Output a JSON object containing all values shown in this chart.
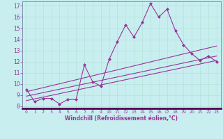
{
  "xlabel": "Windchill (Refroidissement éolien,°C)",
  "bg_color": "#c8eef0",
  "line_color": "#993399",
  "xlim": [
    -0.5,
    23.5
  ],
  "ylim": [
    7.8,
    17.4
  ],
  "yticks": [
    8,
    9,
    10,
    11,
    12,
    13,
    14,
    15,
    16,
    17
  ],
  "xticks": [
    0,
    1,
    2,
    3,
    4,
    5,
    6,
    7,
    8,
    9,
    10,
    11,
    12,
    13,
    14,
    15,
    16,
    17,
    18,
    19,
    20,
    21,
    22,
    23
  ],
  "series1_x": [
    0,
    1,
    2,
    3,
    4,
    5,
    6,
    7,
    8,
    9,
    10,
    11,
    12,
    13,
    14,
    15,
    16,
    17,
    18,
    19,
    20,
    21,
    22,
    23
  ],
  "series1_y": [
    9.5,
    8.4,
    8.7,
    8.7,
    8.2,
    8.6,
    8.6,
    11.7,
    10.2,
    9.8,
    12.2,
    13.8,
    15.3,
    14.2,
    15.5,
    17.2,
    16.0,
    16.7,
    14.8,
    13.5,
    12.7,
    12.1,
    12.5,
    12.0
  ],
  "series2_x": [
    0,
    23
  ],
  "series2_y": [
    8.5,
    12.1
  ],
  "series3_x": [
    0,
    23
  ],
  "series3_y": [
    8.9,
    12.5
  ],
  "series4_x": [
    0,
    23
  ],
  "series4_y": [
    9.3,
    13.4
  ]
}
